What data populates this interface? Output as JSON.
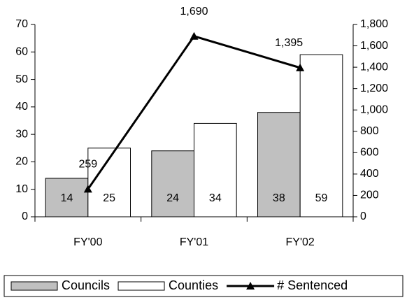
{
  "chart_data": {
    "type": "bar",
    "categories": [
      "FY'00",
      "FY'01",
      "FY'02"
    ],
    "series": [
      {
        "name": "Councils",
        "type": "bar",
        "color": "#c0c0c0",
        "values": [
          14,
          24,
          38
        ]
      },
      {
        "name": "Counties",
        "type": "bar",
        "color": "#ffffff",
        "values": [
          25,
          34,
          59
        ]
      },
      {
        "name": "# Sentenced",
        "type": "line",
        "axis": "y2",
        "color": "#000000",
        "values": [
          259,
          1690,
          1395
        ],
        "value_labels": [
          "259",
          "1,690",
          "1,395"
        ]
      }
    ],
    "ylim": [
      0,
      70
    ],
    "yticks": [
      0,
      10,
      20,
      30,
      40,
      50,
      60,
      70
    ],
    "y2lim": [
      0,
      1800
    ],
    "y2ticks": [
      0,
      200,
      400,
      600,
      800,
      {
        "value": 1000,
        "label": "1,000"
      },
      {
        "value": 1200,
        "label": "1,200"
      },
      {
        "value": 1400,
        "label": "1,400"
      },
      {
        "value": 1600,
        "label": "1,600"
      },
      {
        "value": 1800,
        "label": "1,800"
      }
    ],
    "legend": "bottom",
    "grid": false
  }
}
